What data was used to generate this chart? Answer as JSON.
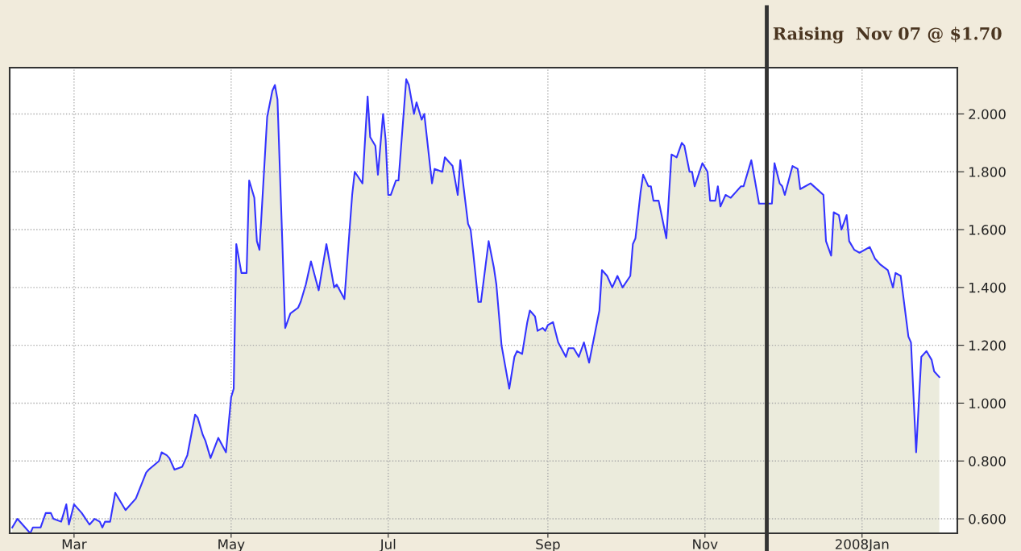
{
  "chart_data": {
    "type": "area",
    "x": [
      "2007-02-05",
      "2007-02-07",
      "2007-02-12",
      "2007-02-13",
      "2007-02-16",
      "2007-02-18",
      "2007-02-20",
      "2007-02-21",
      "2007-02-24",
      "2007-02-26",
      "2007-02-27",
      "2007-03-01",
      "2007-03-04",
      "2007-03-07",
      "2007-03-09",
      "2007-03-11",
      "2007-03-12",
      "2007-03-13",
      "2007-03-15",
      "2007-03-17",
      "2007-03-21",
      "2007-03-25",
      "2007-03-29",
      "2007-03-30",
      "2007-04-03",
      "2007-04-04",
      "2007-04-06",
      "2007-04-07",
      "2007-04-09",
      "2007-04-12",
      "2007-04-14",
      "2007-04-17",
      "2007-04-18",
      "2007-04-20",
      "2007-04-21",
      "2007-04-23",
      "2007-04-26",
      "2007-04-29",
      "2007-05-01",
      "2007-05-02",
      "2007-05-03",
      "2007-05-05",
      "2007-05-07",
      "2007-05-08",
      "2007-05-10",
      "2007-05-11",
      "2007-05-12",
      "2007-05-15",
      "2007-05-17",
      "2007-05-18",
      "2007-05-19",
      "2007-05-22",
      "2007-05-24",
      "2007-05-27",
      "2007-05-28",
      "2007-05-30",
      "2007-06-01",
      "2007-06-04",
      "2007-06-07",
      "2007-06-10",
      "2007-06-11",
      "2007-06-14",
      "2007-06-17",
      "2007-06-18",
      "2007-06-21",
      "2007-06-23",
      "2007-06-24",
      "2007-06-26",
      "2007-06-27",
      "2007-06-29",
      "2007-06-30",
      "2007-07-01",
      "2007-07-02",
      "2007-07-04",
      "2007-07-05",
      "2007-07-08",
      "2007-07-09",
      "2007-07-11",
      "2007-07-12",
      "2007-07-14",
      "2007-07-15",
      "2007-07-18",
      "2007-07-19",
      "2007-07-22",
      "2007-07-23",
      "2007-07-25",
      "2007-07-26",
      "2007-07-28",
      "2007-07-29",
      "2007-08-01",
      "2007-08-02",
      "2007-08-03",
      "2007-08-05",
      "2007-08-06",
      "2007-08-09",
      "2007-08-11",
      "2007-08-12",
      "2007-08-14",
      "2007-08-17",
      "2007-08-19",
      "2007-08-20",
      "2007-08-22",
      "2007-08-24",
      "2007-08-25",
      "2007-08-27",
      "2007-08-28",
      "2007-08-30",
      "2007-08-31",
      "2007-09-01",
      "2007-09-03",
      "2007-09-05",
      "2007-09-08",
      "2007-09-09",
      "2007-09-11",
      "2007-09-13",
      "2007-09-15",
      "2007-09-17",
      "2007-09-21",
      "2007-09-22",
      "2007-09-24",
      "2007-09-26",
      "2007-09-28",
      "2007-09-30",
      "2007-10-03",
      "2007-10-04",
      "2007-10-05",
      "2007-10-07",
      "2007-10-08",
      "2007-10-10",
      "2007-10-11",
      "2007-10-12",
      "2007-10-14",
      "2007-10-17",
      "2007-10-19",
      "2007-10-21",
      "2007-10-23",
      "2007-10-24",
      "2007-10-26",
      "2007-10-27",
      "2007-10-28",
      "2007-10-31",
      "2007-11-02",
      "2007-11-03",
      "2007-11-05",
      "2007-11-06",
      "2007-11-07",
      "2007-11-09",
      "2007-11-11",
      "2007-11-13",
      "2007-11-15",
      "2007-11-16",
      "2007-11-19",
      "2007-11-22",
      "2007-11-25",
      "2007-11-27",
      "2007-11-28",
      "2007-11-30",
      "2007-12-01",
      "2007-12-02",
      "2007-12-05",
      "2007-12-07",
      "2007-12-08",
      "2007-12-12",
      "2007-12-17",
      "2007-12-18",
      "2007-12-20",
      "2007-12-21",
      "2007-12-23",
      "2007-12-24",
      "2007-12-26",
      "2007-12-27",
      "2007-12-29",
      "2007-12-31",
      "2008-01-04",
      "2008-01-06",
      "2008-01-07",
      "2008-01-08",
      "2008-01-11",
      "2008-01-13",
      "2008-01-14",
      "2008-01-16",
      "2008-01-17",
      "2008-01-19",
      "2008-01-20",
      "2008-01-22",
      "2008-01-24",
      "2008-01-26",
      "2008-01-28",
      "2008-01-29",
      "2008-01-31"
    ],
    "series": [
      {
        "color": "#3333ff",
        "values": [
          0.57,
          0.6,
          0.55,
          0.57,
          0.57,
          0.62,
          0.62,
          0.6,
          0.59,
          0.65,
          0.58,
          0.65,
          0.62,
          0.58,
          0.6,
          0.59,
          0.57,
          0.59,
          0.59,
          0.69,
          0.63,
          0.67,
          0.76,
          0.77,
          0.8,
          0.83,
          0.82,
          0.81,
          0.77,
          0.78,
          0.82,
          0.96,
          0.95,
          0.89,
          0.87,
          0.81,
          0.88,
          0.83,
          1.02,
          1.05,
          1.55,
          1.45,
          1.45,
          1.77,
          1.71,
          1.56,
          1.53,
          1.99,
          2.08,
          2.1,
          2.05,
          1.26,
          1.31,
          1.33,
          1.35,
          1.41,
          1.49,
          1.39,
          1.55,
          1.4,
          1.41,
          1.36,
          1.72,
          1.8,
          1.76,
          2.06,
          1.92,
          1.89,
          1.79,
          2.0,
          1.91,
          1.72,
          1.72,
          1.77,
          1.77,
          2.12,
          2.1,
          2.0,
          2.04,
          1.98,
          2.0,
          1.76,
          1.81,
          1.8,
          1.85,
          1.83,
          1.82,
          1.72,
          1.84,
          1.62,
          1.6,
          1.52,
          1.35,
          1.35,
          1.56,
          1.47,
          1.41,
          1.2,
          1.05,
          1.16,
          1.18,
          1.17,
          1.28,
          1.32,
          1.3,
          1.25,
          1.26,
          1.25,
          1.27,
          1.28,
          1.21,
          1.16,
          1.19,
          1.19,
          1.16,
          1.21,
          1.14,
          1.32,
          1.46,
          1.44,
          1.4,
          1.44,
          1.4,
          1.44,
          1.55,
          1.57,
          1.73,
          1.79,
          1.75,
          1.75,
          1.7,
          1.7,
          1.57,
          1.86,
          1.85,
          1.9,
          1.89,
          1.8,
          1.8,
          1.75,
          1.83,
          1.8,
          1.7,
          1.7,
          1.75,
          1.68,
          1.72,
          1.71,
          1.73,
          1.75,
          1.75,
          1.84,
          1.69,
          1.69,
          1.69,
          1.83,
          1.76,
          1.75,
          1.72,
          1.82,
          1.81,
          1.74,
          1.76,
          1.72,
          1.56,
          1.51,
          1.66,
          1.65,
          1.6,
          1.65,
          1.56,
          1.53,
          1.52,
          1.54,
          1.5,
          1.49,
          1.48,
          1.46,
          1.4,
          1.45,
          1.44,
          1.37,
          1.23,
          1.21,
          0.83,
          1.16,
          1.18,
          1.15,
          1.11,
          1.09
        ]
      }
    ],
    "xlim": [
      "2007-02-04",
      "2008-02-07"
    ],
    "xticks": [
      {
        "value": "2007-03-01",
        "label": "Mar"
      },
      {
        "value": "2007-05-01",
        "label": "May"
      },
      {
        "value": "2007-07-01",
        "label": "Jul"
      },
      {
        "value": "2007-09-01",
        "label": "Sep"
      },
      {
        "value": "2007-11-01",
        "label": "Nov"
      },
      {
        "value": "2008-01-01",
        "label": "2008Jan"
      }
    ],
    "ylim": [
      0.55,
      2.16
    ],
    "yticks": [
      {
        "value": 0.6,
        "label": "0.600"
      },
      {
        "value": 0.8,
        "label": "0.800"
      },
      {
        "value": 1.0,
        "label": "1.000"
      },
      {
        "value": 1.2,
        "label": "1.200"
      },
      {
        "value": 1.4,
        "label": "1.400"
      },
      {
        "value": 1.6,
        "label": "1.600"
      },
      {
        "value": 1.8,
        "label": "1.800"
      },
      {
        "value": 2.0,
        "label": "2.000"
      }
    ],
    "grid": true,
    "ref_lines": [
      {
        "axis": "x",
        "value": "2007-11-25",
        "label": "Raising  Nov 07 @ $1.70",
        "color": "#333333"
      }
    ]
  }
}
